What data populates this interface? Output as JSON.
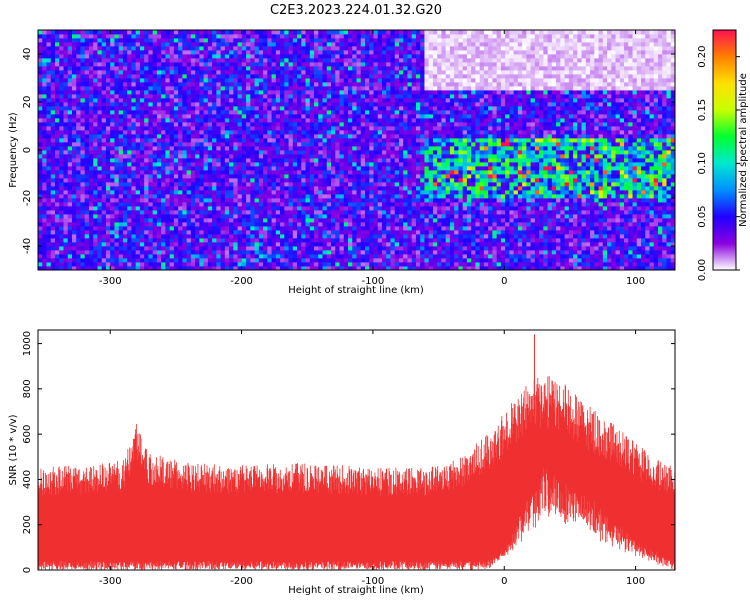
{
  "title": "C2E3.2023.224.01.32.G20",
  "chart_data": [
    {
      "type": "heatmap",
      "xlabel": "Height of straight line (km)",
      "ylabel": "Frequency (Hz)",
      "xlim": [
        -355,
        130
      ],
      "ylim": [
        -50,
        50
      ],
      "xticks": [
        -300,
        -200,
        -100,
        0,
        100
      ],
      "yticks": [
        -40,
        -20,
        0,
        20,
        40
      ],
      "colorbar": {
        "label": "Normalized spectral amplitude",
        "range": [
          0.0,
          0.225
        ],
        "ticks": [
          "0.00",
          "0.05",
          "0.10",
          "0.15",
          "0.20"
        ],
        "tick_values": [
          0.0,
          0.05,
          0.1,
          0.15,
          0.2
        ],
        "colors": [
          "#ffffff",
          "#8a00e0",
          "#2000ff",
          "#0090ff",
          "#00e8d0",
          "#00ff30",
          "#c8ff00",
          "#ffe000",
          "#ff8000",
          "#ff1050"
        ]
      },
      "features": [
        {
          "x_range": [
            -60,
            130
          ],
          "y_range": [
            25,
            50
          ],
          "amplitude": 0.0,
          "description": "low amplitude"
        },
        {
          "x_range": [
            -60,
            130
          ],
          "y_range": [
            -20,
            5
          ],
          "amplitude": 0.09
        }
      ],
      "background_amplitude": 0.04
    },
    {
      "type": "area",
      "xlabel": "Height of straight line (km)",
      "ylabel": "SNR (10 * v/v)",
      "xlim": [
        -355,
        130
      ],
      "ylim": [
        0,
        1060
      ],
      "xticks": [
        -300,
        -200,
        -100,
        0,
        100
      ],
      "yticks": [
        0,
        200,
        400,
        600,
        800,
        1000
      ],
      "color": "#f03030",
      "upper_envelope": {
        "x": [
          -355,
          -320,
          -290,
          -280,
          -270,
          -240,
          -200,
          -150,
          -100,
          -60,
          -30,
          -10,
          0,
          10,
          20,
          30,
          40,
          60,
          80,
          100,
          120,
          130
        ],
        "y": [
          420,
          430,
          450,
          620,
          480,
          440,
          430,
          440,
          420,
          420,
          470,
          580,
          650,
          720,
          790,
          800,
          790,
          690,
          610,
          520,
          440,
          420
        ]
      },
      "lower_envelope": {
        "x": [
          -355,
          -300,
          -200,
          -100,
          -20,
          -10,
          0,
          10,
          20,
          30,
          40,
          60,
          80,
          100,
          120,
          130
        ],
        "y": [
          0,
          0,
          0,
          0,
          0,
          10,
          60,
          150,
          280,
          350,
          340,
          270,
          170,
          90,
          20,
          0
        ]
      },
      "peak": {
        "x": 23,
        "y": 1040
      }
    }
  ]
}
